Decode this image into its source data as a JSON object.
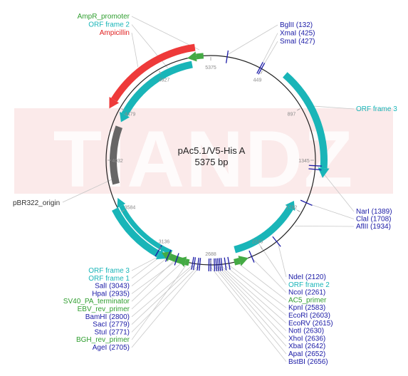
{
  "plasmid": {
    "name": "pAc5.1/V5-His A",
    "size_label": "5375 bp",
    "watermark": "TIANDZ"
  },
  "ticks": [
    "5375",
    "449",
    "897",
    "1345",
    "1792",
    "2240",
    "2688",
    "3136",
    "3584",
    "4032",
    "4479",
    "4927"
  ],
  "labels_top_left": [
    {
      "text": "AmpR_promoter",
      "color": "green"
    },
    {
      "text": "ORF frame 2",
      "color": "teal"
    },
    {
      "text": "Ampicillin",
      "color": "red"
    }
  ],
  "labels_top_right": [
    {
      "text": "BglII (132)",
      "color": "blue"
    },
    {
      "text": "XmaI (425)",
      "color": "blue"
    },
    {
      "text": "SmaI (427)",
      "color": "blue"
    }
  ],
  "label_orf3_right": {
    "text": "ORF frame 3",
    "color": "teal"
  },
  "label_pbr322": {
    "text": "pBR322_origin",
    "color": "dark"
  },
  "labels_mid_right": [
    {
      "text": "NarI (1389)",
      "color": "blue"
    },
    {
      "text": "ClaI (1708)",
      "color": "blue"
    },
    {
      "text": "AflII (1934)",
      "color": "blue"
    }
  ],
  "labels_bottom_left": [
    {
      "text": "ORF frame 3",
      "color": "teal"
    },
    {
      "text": "ORF frame 1",
      "color": "teal"
    },
    {
      "text": "SalI (3043)",
      "color": "blue"
    },
    {
      "text": "HpaI (2935)",
      "color": "blue"
    },
    {
      "text": "SV40_PA_terminator",
      "color": "green"
    },
    {
      "text": "EBV_rev_primer",
      "color": "green"
    },
    {
      "text": "BamHI (2800)",
      "color": "blue"
    },
    {
      "text": "SacI (2779)",
      "color": "blue"
    },
    {
      "text": "StuI (2771)",
      "color": "blue"
    },
    {
      "text": "BGH_rev_primer",
      "color": "green"
    },
    {
      "text": "AgeI (2705)",
      "color": "blue"
    }
  ],
  "labels_bottom_right": [
    {
      "text": "NdeI (2120)",
      "color": "blue"
    },
    {
      "text": "ORF frame 2",
      "color": "teal"
    },
    {
      "text": "NcoI (2261)",
      "color": "blue"
    },
    {
      "text": "AC5_primer",
      "color": "green"
    },
    {
      "text": "KpnI (2583)",
      "color": "blue"
    },
    {
      "text": "EcoRI (2603)",
      "color": "blue"
    },
    {
      "text": "EcoRV (2615)",
      "color": "blue"
    },
    {
      "text": "NotI (2630)",
      "color": "blue"
    },
    {
      "text": "XhoI (2636)",
      "color": "blue"
    },
    {
      "text": "XbaI (2642)",
      "color": "blue"
    },
    {
      "text": "ApaI (2652)",
      "color": "blue"
    },
    {
      "text": "BstBI (2656)",
      "color": "blue"
    }
  ],
  "colors": {
    "teal": "#19b5b8",
    "ampicillin": "#ee3a3a",
    "origin": "#666666",
    "promoter": "#44aa44",
    "site": "#1a1aa6",
    "backbone": "#222222"
  }
}
